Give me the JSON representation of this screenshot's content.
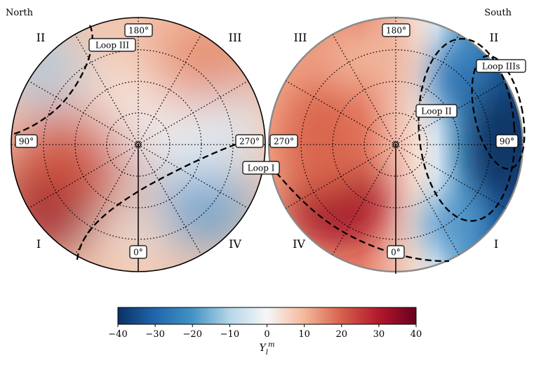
{
  "chart_data": {
    "type": "heatmap",
    "projection": "polar (orthographic hemispheres)",
    "panels": [
      {
        "name": "North",
        "quadrants": [
          "II",
          "III",
          "I",
          "IV"
        ],
        "longitude_labels": [
          "180°",
          "90°",
          "270°",
          "0°"
        ],
        "loops": [
          "Loop III",
          "Loop I"
        ]
      },
      {
        "name": "South",
        "quadrants": [
          "III",
          "II",
          "IV",
          "I"
        ],
        "longitude_labels": [
          "180°",
          "270°",
          "90°",
          "0°"
        ],
        "loops": [
          "Loop IIIs",
          "Loop II",
          "Loop I"
        ]
      }
    ],
    "colorbar": {
      "label": "Y_l^m",
      "label_base": "Y",
      "label_sub": "l",
      "label_sup": "m",
      "min": -40,
      "max": 40,
      "ticks": [
        -40,
        -30,
        -20,
        -10,
        0,
        10,
        20,
        30,
        40
      ],
      "tick_labels": [
        "−40",
        "−30",
        "−20",
        "−10",
        "0",
        "10",
        "20",
        "30",
        "40"
      ],
      "colormap": "RdBu_r"
    }
  }
}
